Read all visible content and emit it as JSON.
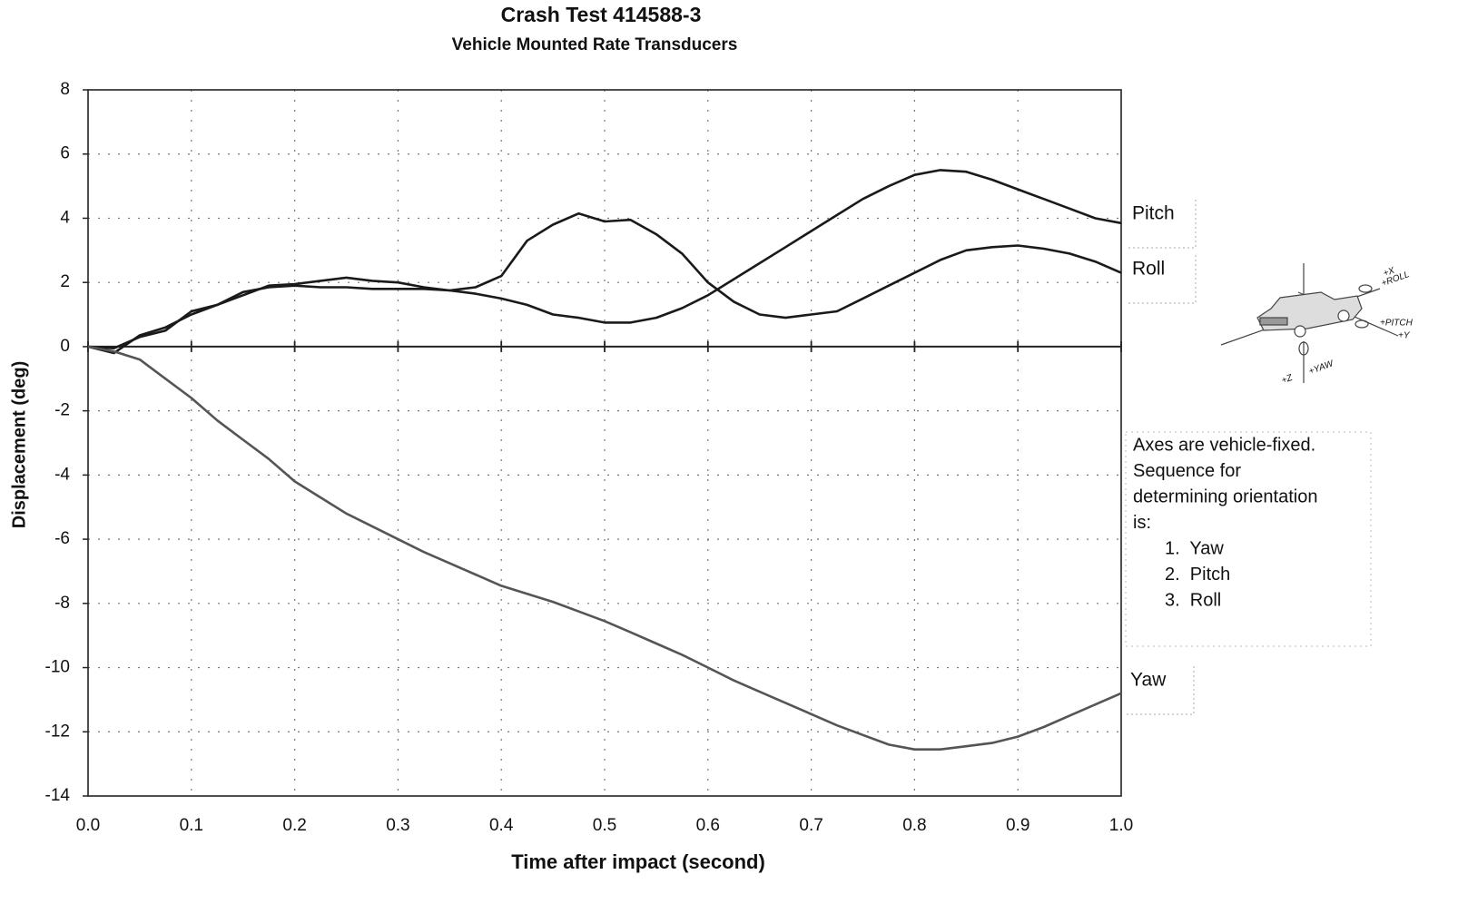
{
  "chart_data": {
    "type": "line",
    "title": "Crash Test 414588-3",
    "subtitle": "Vehicle Mounted Rate Transducers",
    "x_label": "Time after impact (second)",
    "y_label": "Displacement (deg)",
    "x": [
      0,
      0.025,
      0.05,
      0.075,
      0.1,
      0.125,
      0.15,
      0.175,
      0.2,
      0.225,
      0.25,
      0.275,
      0.3,
      0.325,
      0.35,
      0.375,
      0.4,
      0.425,
      0.45,
      0.475,
      0.5,
      0.525,
      0.55,
      0.575,
      0.6,
      0.625,
      0.65,
      0.675,
      0.7,
      0.725,
      0.75,
      0.775,
      0.8,
      0.825,
      0.85,
      0.875,
      0.9,
      0.925,
      0.95,
      0.975,
      1.0
    ],
    "series": [
      {
        "name": "Pitch",
        "color": "#1a1a1a",
        "values": [
          0,
          -0.05,
          0.3,
          0.5,
          1.1,
          1.3,
          1.7,
          1.85,
          1.9,
          1.85,
          1.85,
          1.8,
          1.8,
          1.8,
          1.75,
          1.65,
          1.5,
          1.3,
          1.0,
          0.9,
          0.75,
          0.75,
          0.9,
          1.2,
          1.6,
          2.1,
          2.6,
          3.1,
          3.6,
          4.1,
          4.6,
          5.0,
          5.35,
          5.5,
          5.45,
          5.2,
          4.9,
          4.6,
          4.3,
          4.0,
          3.85
        ]
      },
      {
        "name": "Roll",
        "color": "#1a1a1a",
        "values": [
          0,
          -0.2,
          0.35,
          0.6,
          1.0,
          1.3,
          1.6,
          1.9,
          1.95,
          2.05,
          2.15,
          2.05,
          2.0,
          1.85,
          1.75,
          1.85,
          2.2,
          3.3,
          3.8,
          4.15,
          3.9,
          3.95,
          3.5,
          2.9,
          2.0,
          1.4,
          1.0,
          0.9,
          1.0,
          1.1,
          1.5,
          1.9,
          2.3,
          2.7,
          3.0,
          3.1,
          3.15,
          3.05,
          2.9,
          2.65,
          2.3
        ]
      },
      {
        "name": "Yaw",
        "color": "#555555",
        "values": [
          0,
          -0.15,
          -0.4,
          -1.0,
          -1.6,
          -2.3,
          -2.9,
          -3.5,
          -4.2,
          -4.7,
          -5.2,
          -5.6,
          -6.0,
          -6.4,
          -6.75,
          -7.1,
          -7.45,
          -7.7,
          -7.95,
          -8.25,
          -8.55,
          -8.9,
          -9.25,
          -9.6,
          -10.0,
          -10.4,
          -10.75,
          -11.1,
          -11.45,
          -11.8,
          -12.1,
          -12.4,
          -12.55,
          -12.55,
          -12.45,
          -12.35,
          -12.15,
          -11.85,
          -11.5,
          -11.15,
          -10.8
        ]
      }
    ],
    "xlim": [
      0,
      1
    ],
    "ylim": [
      -14,
      8
    ],
    "xticks": [
      {
        "value": 0,
        "label": "0.0"
      },
      0.1,
      0.2,
      0.3,
      0.4,
      0.5,
      0.6,
      0.7,
      0.8,
      0.9,
      {
        "value": 1,
        "label": "1.0"
      }
    ],
    "yticks": [
      -14,
      -12,
      -10,
      -8,
      -6,
      -4,
      -2,
      0,
      2,
      4,
      6,
      8
    ],
    "grid": true,
    "note": {
      "lines": [
        "Axes are vehicle-fixed.",
        "Sequence for",
        "determining orientation",
        "is:"
      ],
      "items": [
        "1.  Yaw",
        "2.  Pitch",
        "3.  Roll"
      ]
    },
    "inset_labels": [
      "+X",
      "+ROLL",
      "+PITCH",
      "+Y",
      "+Z",
      "+YAW"
    ]
  }
}
